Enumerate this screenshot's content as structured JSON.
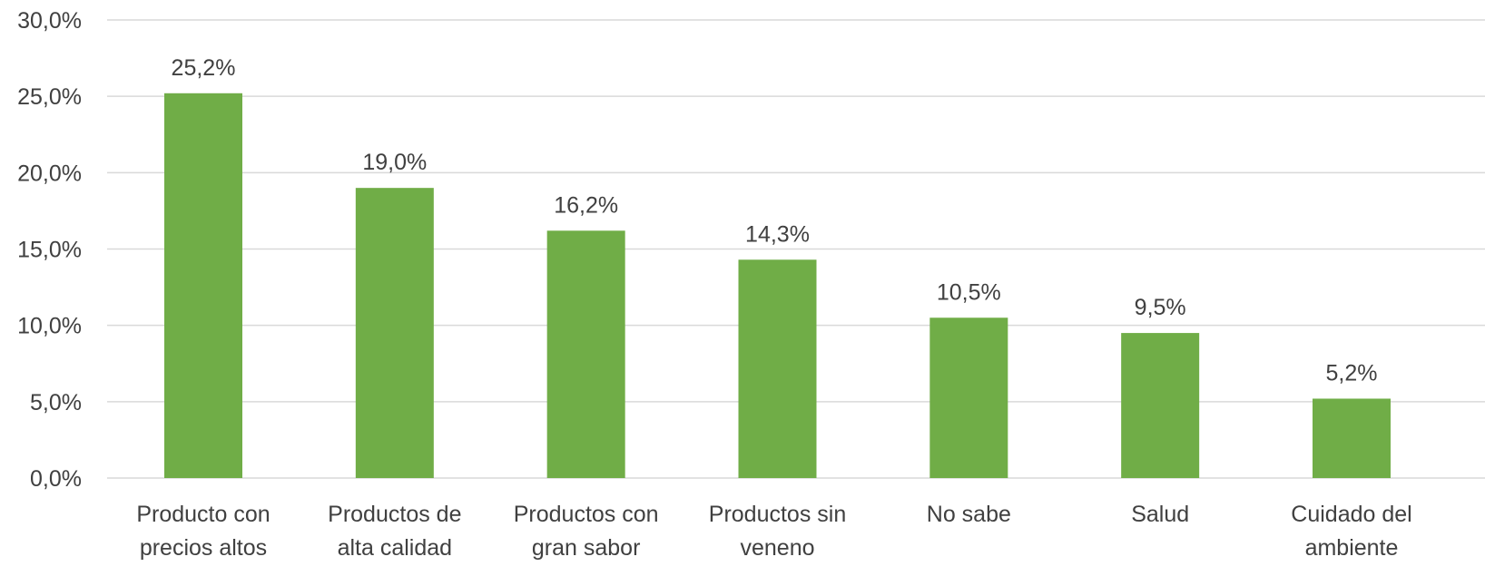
{
  "chart_data": {
    "type": "bar",
    "categories": [
      [
        "Producto con",
        "precios altos"
      ],
      [
        "Productos de",
        "alta calidad"
      ],
      [
        "Productos con",
        "gran sabor"
      ],
      [
        "Productos sin",
        "veneno"
      ],
      [
        "No sabe"
      ],
      [
        "Salud"
      ],
      [
        "Cuidado del",
        "ambiente"
      ]
    ],
    "values": [
      25.2,
      19.0,
      16.2,
      14.3,
      10.5,
      9.5,
      5.2
    ],
    "data_labels": [
      "25,2%",
      "19,0%",
      "16,2%",
      "14,3%",
      "10,5%",
      "9,5%",
      "5,2%"
    ],
    "y_ticks": [
      0,
      5,
      10,
      15,
      20,
      25,
      30
    ],
    "y_tick_labels": [
      "0,0%",
      "5,0%",
      "10,0%",
      "15,0%",
      "20,0%",
      "25,0%",
      "30,0%"
    ],
    "ylim": [
      0,
      30
    ],
    "grid": true,
    "legend": "none",
    "bar_color": "#70ad47",
    "text_color": "#404040",
    "grid_color": "#d9d9d9"
  }
}
